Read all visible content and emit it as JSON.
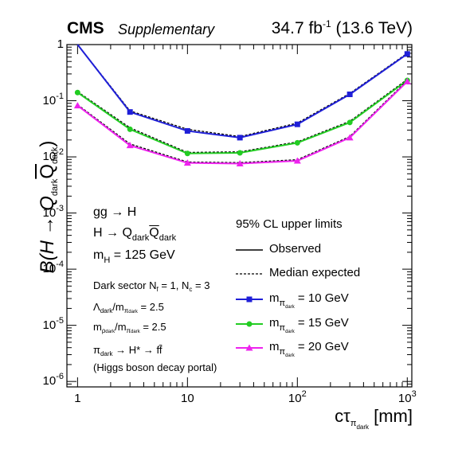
{
  "header": {
    "experiment": "CMS",
    "status": "Supplementary",
    "lumi_value": "34.7 fb",
    "lumi_exp": "-1",
    "energy": "(13.6 TeV)"
  },
  "annotations": {
    "process": "gg → H",
    "decay_main": "H → Q",
    "decay_sub1": "dark",
    "decay_q2": "Q",
    "decay_sub2": "dark",
    "mass_pre": "m",
    "mass_sub": "H",
    "mass_post": " = 125 GeV",
    "sector": "Dark sector N",
    "sector_f": "f",
    "sector_mid": " = 1,  N",
    "sector_c": "c",
    "sector_post": " = 3",
    "lambda_pre": "Λ",
    "lambda_sub": "dark",
    "lambda_mid": "/m",
    "lambda_sub2": "π",
    "lambda_sub3": "dark",
    "lambda_post": " = 2.5",
    "rho_pre": "m",
    "rho_sub": "ρ",
    "rho_sub2": "dark",
    "rho_mid": "/m",
    "rho_sub3": "π",
    "rho_sub4": "dark",
    "rho_post": " = 2.5",
    "portal_pre": "π",
    "portal_sub": "dark",
    "portal_post": " → H* → ff̄",
    "portal_note": "(Higgs boson decay portal)"
  },
  "legend": {
    "title": "95% CL upper limits",
    "observed": "Observed",
    "expected": "Median expected",
    "m_pre": "m",
    "m_sub": "π",
    "m_sub2": "dark",
    "entries": [
      " = 10 GeV",
      " = 15 GeV",
      " = 20 GeV"
    ]
  },
  "axes": {
    "x_pre": "cτ",
    "x_sub": "π",
    "x_sub2": "dark",
    "x_post": " [mm]",
    "y_pre": "B(H → Q",
    "y_sub": "dark",
    "y_mid": "Q",
    "y_sub2": "dark",
    "y_post": ")"
  },
  "chart_data": {
    "type": "line",
    "x_scale": "log",
    "y_scale": "log",
    "xlim": [
      0.8,
      1100
    ],
    "ylim": [
      8e-07,
      1
    ],
    "x": [
      1,
      3,
      10,
      30,
      100,
      300,
      1000
    ],
    "x_ticks": [
      "1",
      "10",
      "10^2",
      "10^3"
    ],
    "y_ticks": [
      "10^-6",
      "10^-5",
      "10^-4",
      "10^-3",
      "10^-2",
      "10^-1",
      "1"
    ],
    "grid": false,
    "legend_position": "bottom-right",
    "series": [
      {
        "name": "m = 10 GeV",
        "color": "#1f1fd8",
        "marker": "square",
        "observed": [
          1.4,
          0.063,
          0.029,
          0.022,
          0.038,
          0.13,
          0.68
        ],
        "expected": [
          1.4,
          0.066,
          0.031,
          0.023,
          0.04,
          0.135,
          0.7
        ]
      },
      {
        "name": "m = 15 GeV",
        "color": "#22cc22",
        "marker": "circle",
        "observed": [
          0.14,
          0.031,
          0.0115,
          0.0118,
          0.0178,
          0.041,
          0.23
        ],
        "expected": [
          0.145,
          0.033,
          0.012,
          0.0123,
          0.0185,
          0.043,
          0.24
        ]
      },
      {
        "name": "m = 20 GeV",
        "color": "#ee22ee",
        "marker": "triangle",
        "observed": [
          0.082,
          0.016,
          0.0078,
          0.0076,
          0.0085,
          0.022,
          0.22
        ],
        "expected": [
          0.085,
          0.017,
          0.0081,
          0.0079,
          0.0089,
          0.023,
          0.23
        ]
      }
    ]
  }
}
